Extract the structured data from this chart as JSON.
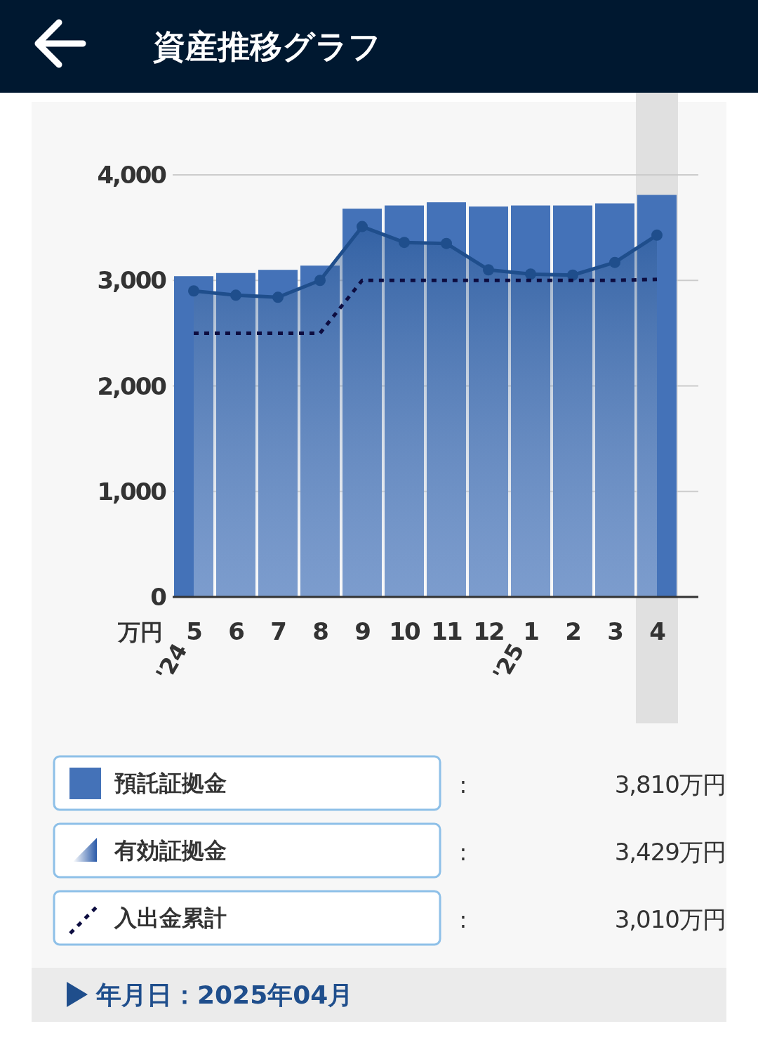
{
  "chart_data": {
    "type": "bar",
    "title": "資産推移グラフ",
    "ylabel": "万円",
    "categories": [
      "5",
      "6",
      "7",
      "8",
      "9",
      "10",
      "11",
      "12",
      "1",
      "2",
      "3",
      "4"
    ],
    "series": [
      {
        "name": "預託証拠金",
        "color": "#4472b8",
        "values": [
          3040,
          3070,
          3100,
          3140,
          3680,
          3710,
          3740,
          3700,
          3710,
          3710,
          3730,
          3810
        ]
      },
      {
        "name": "有効証拠金",
        "type": "area",
        "color": "#1f4e8c",
        "marker": "circle",
        "values": [
          2900,
          2860,
          2840,
          3000,
          3510,
          3360,
          3350,
          3100,
          3060,
          3050,
          3170,
          3429
        ]
      },
      {
        "name": "入出金累計",
        "type": "line",
        "color": "#0d0d40",
        "line_style": "dotted",
        "values": [
          2500,
          2500,
          2500,
          2500,
          3000,
          3000,
          3000,
          3000,
          3000,
          3000,
          3000,
          3010
        ]
      }
    ],
    "ylim": [
      0,
      4000
    ],
    "yticks": [
      0,
      {
        "value": 1000,
        "label": "1,000"
      },
      {
        "value": 2000,
        "label": "2,000"
      },
      {
        "value": 3000,
        "label": "3,000"
      },
      {
        "value": 4000,
        "label": "4,000"
      }
    ],
    "grid": "y",
    "legend": "bottom",
    "bands": [
      {
        "axis": "x",
        "from": "4",
        "to": "4",
        "color": "#e0e0e0"
      }
    ],
    "annotations": [
      "'24",
      "'25",
      ":",
      "3,810万円",
      ":",
      "3,429万円",
      ":",
      "3,010万円",
      "年月日：2025年04月"
    ]
  }
}
